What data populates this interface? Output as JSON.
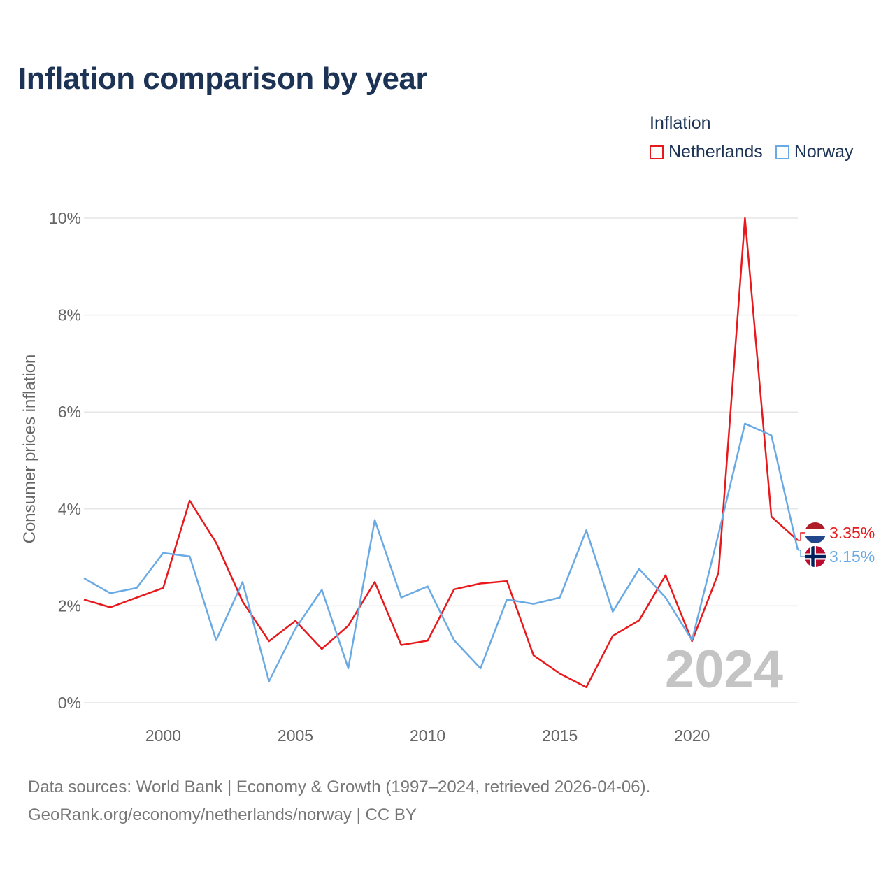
{
  "title": "Inflation comparison by year",
  "legend": {
    "title": "Inflation",
    "items": [
      {
        "label": "Netherlands",
        "color": "#e8191c"
      },
      {
        "label": "Norway",
        "color": "#6aaae4"
      }
    ]
  },
  "chart_data": {
    "type": "line",
    "title": "Inflation comparison by year",
    "xlabel": "",
    "ylabel": "Consumer prices inflation",
    "x": [
      1997,
      1998,
      1999,
      2000,
      2001,
      2002,
      2003,
      2004,
      2005,
      2006,
      2007,
      2008,
      2009,
      2010,
      2011,
      2012,
      2013,
      2014,
      2015,
      2016,
      2017,
      2018,
      2019,
      2020,
      2021,
      2022,
      2023,
      2024
    ],
    "xlim": [
      1997,
      2024
    ],
    "ylim": [
      0,
      10
    ],
    "x_ticks": [
      2000,
      2005,
      2010,
      2015,
      2020
    ],
    "y_ticks": [
      0,
      2,
      4,
      6,
      8,
      10
    ],
    "y_tick_labels": [
      "0%",
      "2%",
      "4%",
      "6%",
      "8%",
      "10%"
    ],
    "grid": true,
    "legend_position": "top-right",
    "series": [
      {
        "name": "Netherlands",
        "color": "#e8191c",
        "values": [
          2.13,
          1.97,
          2.17,
          2.37,
          4.17,
          3.3,
          2.09,
          1.27,
          1.69,
          1.11,
          1.59,
          2.49,
          1.19,
          1.28,
          2.34,
          2.46,
          2.51,
          0.98,
          0.6,
          0.32,
          1.38,
          1.7,
          2.63,
          1.27,
          2.68,
          10.0,
          3.84,
          3.35
        ],
        "end_label": "3.35%"
      },
      {
        "name": "Norway",
        "color": "#6aaae4",
        "values": [
          2.57,
          2.26,
          2.37,
          3.09,
          3.02,
          1.29,
          2.49,
          0.44,
          1.53,
          2.33,
          0.71,
          3.77,
          2.17,
          2.4,
          1.29,
          0.71,
          2.13,
          2.04,
          2.17,
          3.56,
          1.88,
          2.76,
          2.17,
          1.29,
          3.48,
          5.76,
          5.52,
          3.15
        ],
        "end_label": "3.15%"
      }
    ],
    "annotations": [
      {
        "text": "2024",
        "placement": "bottom-right"
      }
    ]
  },
  "source": {
    "line1": "Data sources: World Bank | Economy & Growth (1997–2024, retrieved 2026-04-06).",
    "line2": "GeoRank.org/economy/netherlands/norway | CC BY"
  }
}
